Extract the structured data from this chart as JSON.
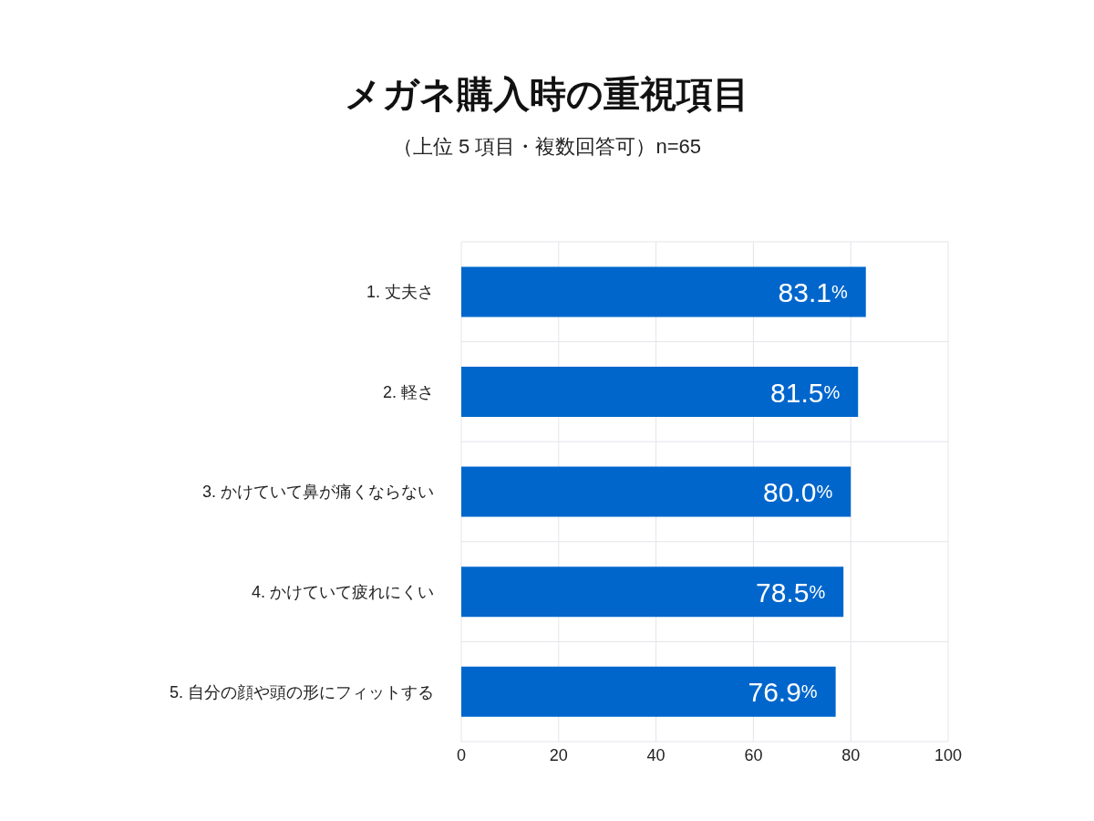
{
  "chart_data": {
    "type": "bar",
    "orientation": "horizontal",
    "title": "メガネ購入時の重視項目",
    "subtitle": "（上位 5 項目・複数回答可）n=65",
    "categories": [
      "1. 丈夫さ",
      "2. 軽さ",
      "3. かけていて鼻が痛くならない",
      "4. かけていて疲れにくい",
      "5. 自分の顔や頭の形にフィットする"
    ],
    "values": [
      83.1,
      81.5,
      80.0,
      78.5,
      76.9
    ],
    "value_labels": [
      "83.1%",
      "81.5%",
      "80.0%",
      "78.5%",
      "76.9%"
    ],
    "color": "#0066cc",
    "xlim": [
      0,
      100
    ],
    "xticks": [
      0,
      20,
      40,
      60,
      80,
      100
    ],
    "grid": true
  }
}
